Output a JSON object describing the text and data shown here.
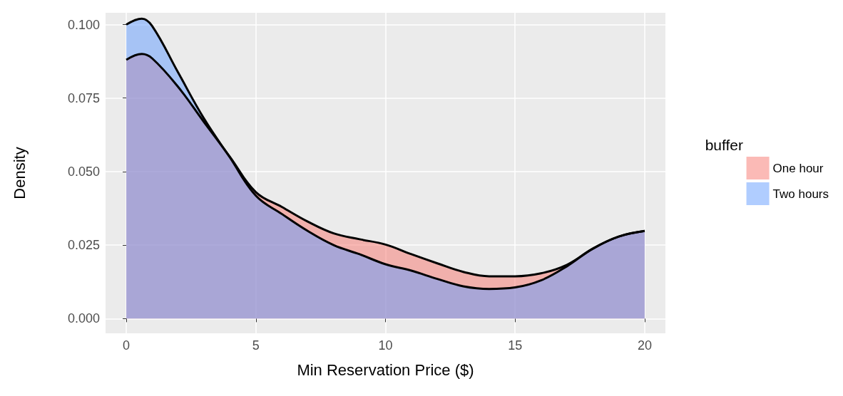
{
  "chart_data": {
    "type": "area",
    "xlabel": "Min Reservation Price ($)",
    "ylabel": "Density",
    "legend_title": "buffer",
    "legend": "right",
    "xlim": [
      -0.8,
      20.8
    ],
    "ylim": [
      -0.005,
      0.104
    ],
    "xticks": [
      0,
      5,
      10,
      15,
      20
    ],
    "yticks": [
      {
        "value": 0,
        "label": "0.000"
      },
      {
        "value": 0.025,
        "label": "0.025"
      },
      {
        "value": 0.05,
        "label": "0.050"
      },
      {
        "value": 0.075,
        "label": "0.075"
      },
      {
        "value": 0.1,
        "label": "0.100"
      }
    ],
    "grid": true,
    "series": [
      {
        "name": "One hour",
        "color": "#f8766d",
        "x": [
          0,
          0.6,
          1,
          2,
          3,
          4,
          5,
          6,
          7,
          8,
          9,
          10,
          11,
          12,
          13,
          14,
          15,
          16,
          17,
          18,
          19,
          20
        ],
        "values": [
          0.088,
          0.09,
          0.0885,
          0.0788,
          0.0668,
          0.055,
          0.043,
          0.038,
          0.033,
          0.029,
          0.027,
          0.0252,
          0.0219,
          0.0188,
          0.0159,
          0.0144,
          0.0144,
          0.0154,
          0.0183,
          0.0238,
          0.0279,
          0.0298
        ]
      },
      {
        "name": "Two hours",
        "color": "#619cff",
        "x": [
          0,
          0.6,
          1,
          2,
          3,
          4,
          5,
          6,
          7,
          8,
          9,
          10,
          11,
          12,
          13,
          14,
          15,
          16,
          17,
          18,
          19,
          20
        ],
        "values": [
          0.1,
          0.102,
          0.0995,
          0.0837,
          0.068,
          0.0548,
          0.0418,
          0.0356,
          0.0298,
          0.025,
          0.0219,
          0.0185,
          0.0163,
          0.0135,
          0.011,
          0.0101,
          0.0106,
          0.013,
          0.0178,
          0.0238,
          0.0279,
          0.0298
        ]
      }
    ]
  }
}
